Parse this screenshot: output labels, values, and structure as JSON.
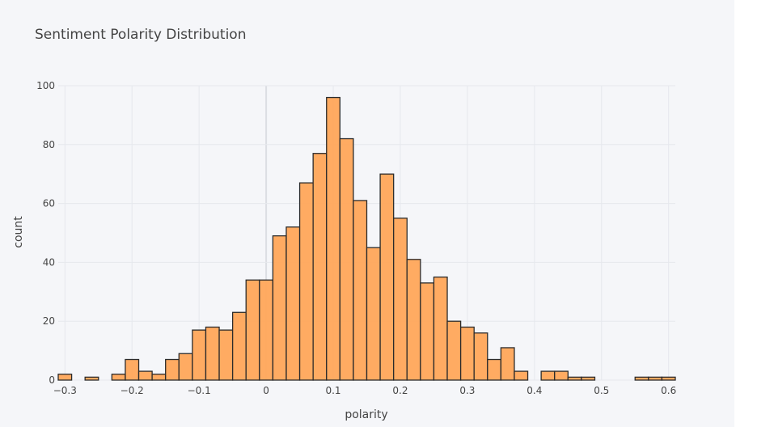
{
  "chart_data": {
    "type": "bar",
    "title": "Sentiment Polarity Distribution",
    "xlabel": "polarity",
    "ylabel": "count",
    "xlim": [
      -0.31,
      0.61
    ],
    "ylim": [
      0,
      100
    ],
    "xticks": [
      -0.3,
      -0.2,
      -0.1,
      0,
      0.1,
      0.2,
      0.3,
      0.4,
      0.5,
      0.6
    ],
    "xtick_labels": [
      "−0.3",
      "−0.2",
      "−0.1",
      "0",
      "0.1",
      "0.2",
      "0.3",
      "0.4",
      "0.5",
      "0.6"
    ],
    "yticks": [
      0,
      20,
      40,
      60,
      80,
      100
    ],
    "ytick_labels": [
      "0",
      "20",
      "40",
      "60",
      "80",
      "100"
    ],
    "grid": true,
    "bar_color": "#ffa65a",
    "bar_edge_color": "#2b2b2b",
    "bins": [
      {
        "x0": -0.31,
        "x1": -0.29,
        "count": 2
      },
      {
        "x0": -0.29,
        "x1": -0.27,
        "count": 0
      },
      {
        "x0": -0.27,
        "x1": -0.25,
        "count": 1
      },
      {
        "x0": -0.25,
        "x1": -0.23,
        "count": 0
      },
      {
        "x0": -0.23,
        "x1": -0.21,
        "count": 2
      },
      {
        "x0": -0.21,
        "x1": -0.19,
        "count": 7
      },
      {
        "x0": -0.19,
        "x1": -0.17,
        "count": 3
      },
      {
        "x0": -0.17,
        "x1": -0.15,
        "count": 2
      },
      {
        "x0": -0.15,
        "x1": -0.13,
        "count": 7
      },
      {
        "x0": -0.13,
        "x1": -0.11,
        "count": 9
      },
      {
        "x0": -0.11,
        "x1": -0.09,
        "count": 17
      },
      {
        "x0": -0.09,
        "x1": -0.07,
        "count": 18
      },
      {
        "x0": -0.07,
        "x1": -0.05,
        "count": 17
      },
      {
        "x0": -0.05,
        "x1": -0.03,
        "count": 23
      },
      {
        "x0": -0.03,
        "x1": -0.01,
        "count": 34
      },
      {
        "x0": -0.01,
        "x1": 0.01,
        "count": 34
      },
      {
        "x0": 0.01,
        "x1": 0.03,
        "count": 49
      },
      {
        "x0": 0.03,
        "x1": 0.05,
        "count": 52
      },
      {
        "x0": 0.05,
        "x1": 0.07,
        "count": 67
      },
      {
        "x0": 0.07,
        "x1": 0.09,
        "count": 77
      },
      {
        "x0": 0.09,
        "x1": 0.11,
        "count": 96
      },
      {
        "x0": 0.11,
        "x1": 0.13,
        "count": 82
      },
      {
        "x0": 0.13,
        "x1": 0.15,
        "count": 61
      },
      {
        "x0": 0.15,
        "x1": 0.17,
        "count": 45
      },
      {
        "x0": 0.17,
        "x1": 0.19,
        "count": 70
      },
      {
        "x0": 0.19,
        "x1": 0.21,
        "count": 55
      },
      {
        "x0": 0.21,
        "x1": 0.23,
        "count": 41
      },
      {
        "x0": 0.23,
        "x1": 0.25,
        "count": 33
      },
      {
        "x0": 0.25,
        "x1": 0.27,
        "count": 35
      },
      {
        "x0": 0.27,
        "x1": 0.29,
        "count": 20
      },
      {
        "x0": 0.29,
        "x1": 0.31,
        "count": 18
      },
      {
        "x0": 0.31,
        "x1": 0.33,
        "count": 16
      },
      {
        "x0": 0.33,
        "x1": 0.35,
        "count": 7
      },
      {
        "x0": 0.35,
        "x1": 0.37,
        "count": 11
      },
      {
        "x0": 0.37,
        "x1": 0.39,
        "count": 3
      },
      {
        "x0": 0.39,
        "x1": 0.41,
        "count": 0
      },
      {
        "x0": 0.41,
        "x1": 0.43,
        "count": 3
      },
      {
        "x0": 0.43,
        "x1": 0.45,
        "count": 3
      },
      {
        "x0": 0.45,
        "x1": 0.47,
        "count": 1
      },
      {
        "x0": 0.47,
        "x1": 0.49,
        "count": 1
      },
      {
        "x0": 0.49,
        "x1": 0.51,
        "count": 0
      },
      {
        "x0": 0.51,
        "x1": 0.53,
        "count": 0
      },
      {
        "x0": 0.53,
        "x1": 0.55,
        "count": 0
      },
      {
        "x0": 0.55,
        "x1": 0.57,
        "count": 1
      },
      {
        "x0": 0.57,
        "x1": 0.59,
        "count": 1
      },
      {
        "x0": 0.59,
        "x1": 0.61,
        "count": 1
      }
    ]
  }
}
